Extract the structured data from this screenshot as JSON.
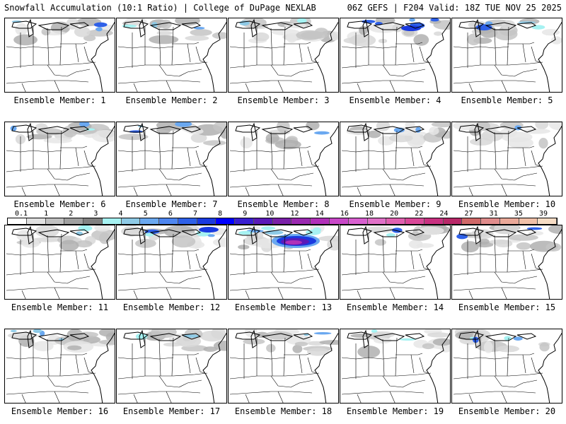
{
  "header": {
    "left": "Snowfall Accumulation (10:1 Ratio) | College of DuPage NEXLAB",
    "right": "06Z GEFS | F204 Valid: 18Z TUE NOV 25 2025"
  },
  "members": [
    {
      "label": "Ensemble Member: 1",
      "intensity": "light",
      "blue": 0.6
    },
    {
      "label": "Ensemble Member: 2",
      "intensity": "light",
      "blue": 0.5
    },
    {
      "label": "Ensemble Member: 3",
      "intensity": "light",
      "blue": 0.3
    },
    {
      "label": "Ensemble Member: 4",
      "intensity": "moderate",
      "blue": 0.9
    },
    {
      "label": "Ensemble Member: 5",
      "intensity": "light",
      "blue": 0.6
    },
    {
      "label": "Ensemble Member: 6",
      "intensity": "light",
      "blue": 0.5
    },
    {
      "label": "Ensemble Member: 7",
      "intensity": "light",
      "blue": 0.5
    },
    {
      "label": "Ensemble Member: 8",
      "intensity": "light",
      "blue": 0.2
    },
    {
      "label": "Ensemble Member: 9",
      "intensity": "light",
      "blue": 0.3
    },
    {
      "label": "Ensemble Member: 10",
      "intensity": "light",
      "blue": 0.1
    },
    {
      "label": "Ensemble Member: 11",
      "intensity": "light",
      "blue": 0.3
    },
    {
      "label": "Ensemble Member: 12",
      "intensity": "moderate",
      "blue": 0.6
    },
    {
      "label": "Ensemble Member: 13",
      "intensity": "heavy",
      "blue": 1.0
    },
    {
      "label": "Ensemble Member: 14",
      "intensity": "light",
      "blue": 0.3
    },
    {
      "label": "Ensemble Member: 15",
      "intensity": "light",
      "blue": 0.3
    },
    {
      "label": "Ensemble Member: 16",
      "intensity": "light",
      "blue": 0.6
    },
    {
      "label": "Ensemble Member: 17",
      "intensity": "light",
      "blue": 0.4
    },
    {
      "label": "Ensemble Member: 18",
      "intensity": "light",
      "blue": 0.3
    },
    {
      "label": "Ensemble Member: 19",
      "intensity": "light",
      "blue": 0.3
    },
    {
      "label": "Ensemble Member: 20",
      "intensity": "light",
      "blue": 0.6
    }
  ],
  "colorbar": {
    "labels": [
      "0.1",
      "1",
      "2",
      "3",
      "4",
      "5",
      "6",
      "7",
      "8",
      "9",
      "10",
      "12",
      "14",
      "16",
      "18",
      "20",
      "22",
      "24",
      "27",
      "31",
      "35",
      "39"
    ],
    "colors": [
      "#ffffff",
      "#e0e0e0",
      "#c0c0c0",
      "#a0a0a0",
      "#808080",
      "#a6f2f2",
      "#8ecae6",
      "#6aa8f0",
      "#4e86f0",
      "#2e60e8",
      "#1a3ae0",
      "#0000ff",
      "#3a1fd0",
      "#5a1ab8",
      "#7a20a8",
      "#9a28b0",
      "#b030b8",
      "#c848c8",
      "#d860d0",
      "#e070c8",
      "#e060b0",
      "#d84898",
      "#c83080",
      "#b82868",
      "#d06868",
      "#e08c8c",
      "#eaa898",
      "#f0c0a8",
      "#f6dcc4"
    ]
  }
}
